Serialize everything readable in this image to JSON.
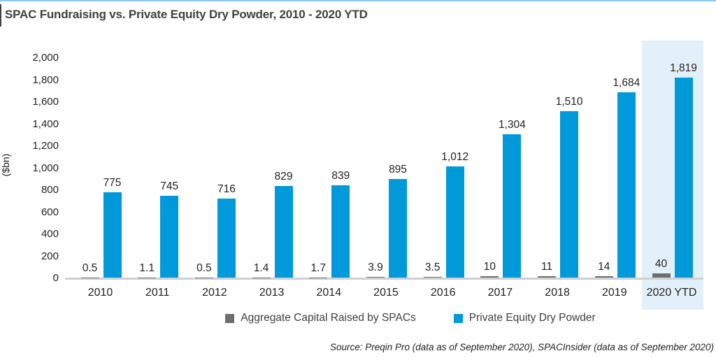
{
  "page": {
    "title": "SPAC Fundraising vs. Private Equity Dry Powder, 2010 - 2020 YTD",
    "source": "Source: Preqin Pro (data as of September 2020), SPACInsider (data as of September 2020)"
  },
  "colors": {
    "pe_blue": "#0099DA",
    "spac_gray": "#6D6E71",
    "highlight_bg": "#E2F1F9",
    "top_rule_blue": "#8FC6EA",
    "baseline_gray": "#CDCFD1",
    "title_text": "#414042",
    "label_text": "#231F20"
  },
  "chart_data": {
    "type": "bar",
    "title": "SPAC Fundraising vs. Private Equity Dry Powder, 2010 - 2020 YTD",
    "xlabel": "",
    "ylabel": "($bn)",
    "ylim": [
      0,
      2000
    ],
    "ytick_interval": 200,
    "ytick_labels": [
      "0",
      "200",
      "400",
      "600",
      "800",
      "1,000",
      "1,200",
      "1,400",
      "1,600",
      "1,800",
      "2,000"
    ],
    "categories": [
      "2010",
      "2011",
      "2012",
      "2013",
      "2014",
      "2015",
      "2016",
      "2017",
      "2018",
      "2019",
      "2020 YTD"
    ],
    "series": [
      {
        "name": "Aggregate Capital Raised by SPACs",
        "color": "#6D6E71",
        "values": [
          0.5,
          1.1,
          0.5,
          1.4,
          1.7,
          3.9,
          3.5,
          10,
          11,
          14,
          40
        ],
        "labels": [
          "0.5",
          "1.1",
          "0.5",
          "1.4",
          "1.7",
          "3.9",
          "3.5",
          "10",
          "11",
          "14",
          "40"
        ]
      },
      {
        "name": "Private Equity Dry Powder",
        "color": "#0099DA",
        "values": [
          775,
          745,
          716,
          829,
          839,
          895,
          1012,
          1304,
          1510,
          1684,
          1819
        ],
        "labels": [
          "775",
          "745",
          "716",
          "829",
          "839",
          "895",
          "1,012",
          "1,304",
          "1,510",
          "1,684",
          "1,819"
        ]
      }
    ],
    "highlighted_category": "2020 YTD",
    "grid": false,
    "legend_position": "bottom",
    "source": "Source: Preqin Pro (data as of September 2020), SPACInsider (data as of September 2020)"
  }
}
